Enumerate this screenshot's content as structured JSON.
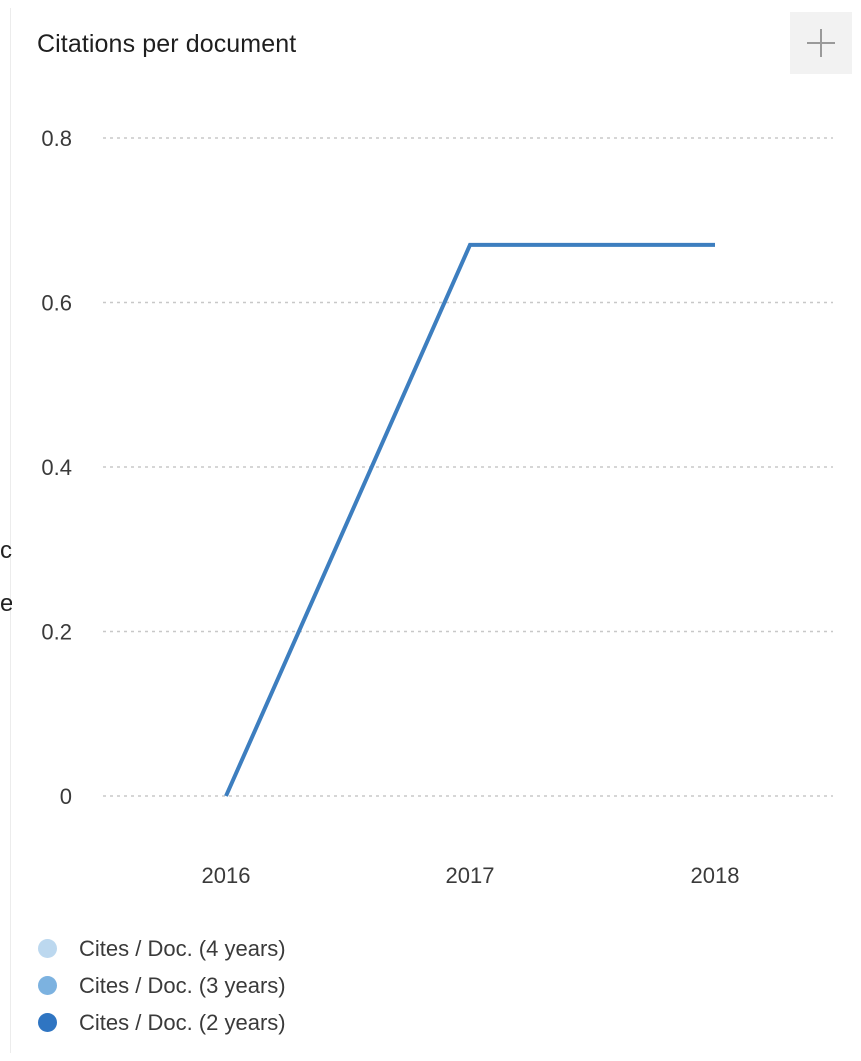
{
  "header": {
    "title": "Citations per document"
  },
  "stray_text": [
    "c",
    "e"
  ],
  "colors": {
    "line": "#3d7ebf",
    "grid": "#c8c8c8",
    "legend": [
      "#bcd8ef",
      "#7cb2e0",
      "#2f75c2"
    ]
  },
  "chart_data": {
    "type": "line",
    "title": "Citations per document",
    "xlabel": "",
    "ylabel": "",
    "x": [
      "2016",
      "2017",
      "2018"
    ],
    "ylim": [
      0,
      0.8
    ],
    "yticks": [
      "0",
      "0.2",
      "0.4",
      "0.6",
      "0.8"
    ],
    "ytick_values": [
      0,
      0.2,
      0.4,
      0.6,
      0.8
    ],
    "grid": true,
    "legend_position": "bottom",
    "legend": [
      "Cites / Doc. (4 years)",
      "Cites / Doc. (3 years)",
      "Cites / Doc. (2 years)"
    ],
    "series": [
      {
        "values": [
          0,
          0.67,
          0.67
        ]
      }
    ]
  }
}
